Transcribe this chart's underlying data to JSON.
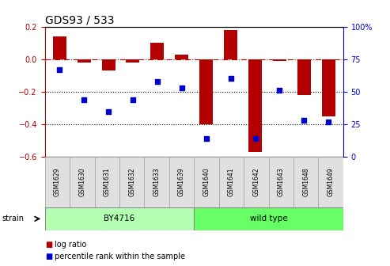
{
  "title": "GDS93 / 533",
  "samples": [
    "GSM1629",
    "GSM1630",
    "GSM1631",
    "GSM1632",
    "GSM1633",
    "GSM1639",
    "GSM1640",
    "GSM1641",
    "GSM1642",
    "GSM1643",
    "GSM1648",
    "GSM1649"
  ],
  "log_ratio": [
    0.14,
    -0.02,
    -0.07,
    -0.02,
    0.1,
    0.03,
    -0.4,
    0.18,
    -0.57,
    -0.01,
    -0.22,
    -0.35
  ],
  "percentile": [
    67,
    44,
    35,
    44,
    58,
    53,
    14,
    60,
    14,
    51,
    28,
    27
  ],
  "strain_groups": [
    {
      "label": "BY4716",
      "start": 0,
      "end": 6,
      "color": "#b3ffb3"
    },
    {
      "label": "wild type",
      "start": 6,
      "end": 12,
      "color": "#66ff66"
    }
  ],
  "bar_color": "#b30000",
  "dot_color": "#0000cc",
  "ylim_left": [
    -0.6,
    0.2
  ],
  "ylim_right": [
    0,
    100
  ],
  "yticks_left": [
    -0.6,
    -0.4,
    -0.2,
    0.0,
    0.2
  ],
  "yticks_right": [
    0,
    25,
    50,
    75,
    100
  ],
  "hline_y": 0.0,
  "dotted_lines": [
    -0.2,
    -0.4
  ],
  "background_color": "#ffffff",
  "plot_bg_color": "#ffffff",
  "xlim": [
    -0.6,
    11.6
  ]
}
